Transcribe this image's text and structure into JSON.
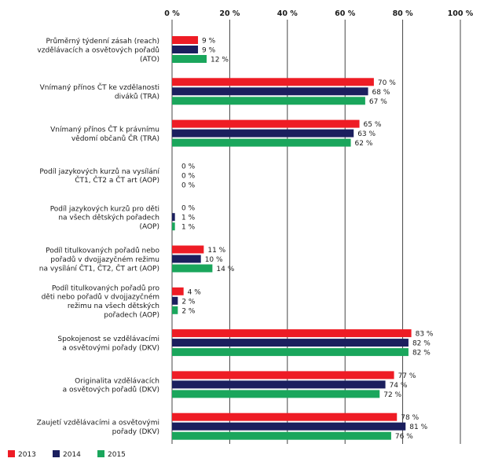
{
  "chart_data": {
    "type": "bar",
    "orientation": "horizontal",
    "xlim": [
      0,
      100
    ],
    "x_ticks": [
      "0 %",
      "20 %",
      "40 %",
      "60 %",
      "80 %",
      "100 %"
    ],
    "grid": true,
    "legend_position": "bottom-left",
    "value_suffix": " %",
    "colors": {
      "2013": "#ee1c25",
      "2014": "#1b1f5e",
      "2015": "#1aa65c",
      "grid": "#333333"
    },
    "categories": [
      [
        "Průměrný týdenní zásah (reach)",
        "vzdělávacích a osvětových pořadů",
        "(ATO)"
      ],
      [
        "Vnímaný přínos ČT ke vzdělanosti",
        "diváků (TRA)"
      ],
      [
        "Vnímaný přínos ČT k právnímu",
        "vědomí občanů ČR (TRA)"
      ],
      [
        "Podíl jazykových kurzů na vysílání",
        "ČT1, ČT2 a ČT art (AOP)"
      ],
      [
        "Podíl jazykových kurzů pro děti",
        "na všech dětských pořadech",
        "(AOP)"
      ],
      [
        "Podíl titulkovaných pořadů nebo",
        "pořadů v dvojjazyčném režimu",
        "na vysílání ČT1, ČT2, ČT art (AOP)"
      ],
      [
        "Podíl titulkovaných pořadů pro",
        "děti nebo pořadů v dvojjazyčném",
        "režimu na všech dětských",
        "pořadech (AOP)"
      ],
      [
        "Spokojenost se vzdělávacími",
        "a osvětovými pořady (DKV)"
      ],
      [
        "Originalita vzdělávacích",
        "a osvětových pořadů (DKV)"
      ],
      [
        "Zaujetí vzdělávacími a osvětovými",
        "pořady (DKV)"
      ]
    ],
    "series": [
      {
        "name": "2013",
        "values": [
          9,
          70,
          65,
          0,
          0,
          11,
          4,
          83,
          77,
          78
        ]
      },
      {
        "name": "2014",
        "values": [
          9,
          68,
          63,
          0,
          1,
          10,
          2,
          82,
          74,
          81
        ]
      },
      {
        "name": "2015",
        "values": [
          12,
          67,
          62,
          0,
          1,
          14,
          2,
          82,
          72,
          76
        ]
      }
    ]
  }
}
